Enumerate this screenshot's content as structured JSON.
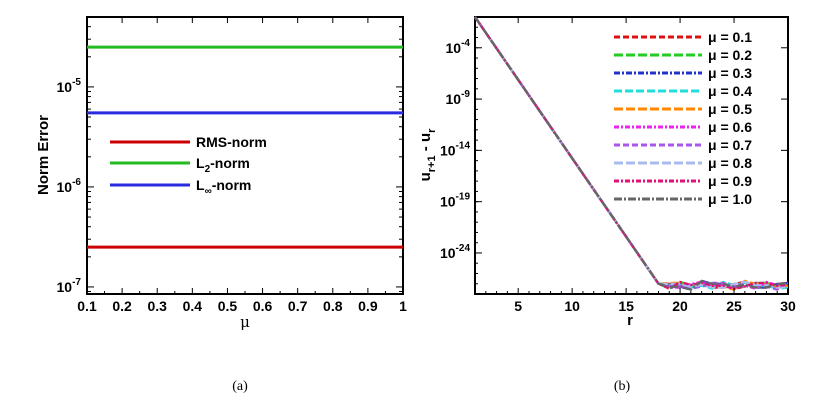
{
  "chart_data": [
    {
      "type": "line",
      "panel": "(a)",
      "xlabel": "μ",
      "ylabel": "Norm Error",
      "xlim": [
        0.1,
        1.0
      ],
      "ylim": [
        8.5e-08,
        5e-05
      ],
      "yscale": "log",
      "xticks": [
        "0.1",
        "0.2",
        "0.3",
        "0.4",
        "0.5",
        "0.6",
        "0.7",
        "0.8",
        "0.9",
        "1"
      ],
      "yticks": [
        {
          "value": 1e-07,
          "base": "10",
          "exp": "-7"
        },
        {
          "value": 1e-06,
          "base": "10",
          "exp": "-6"
        },
        {
          "value": 1e-05,
          "base": "10",
          "exp": "-5"
        }
      ],
      "legend_position": "center-left",
      "series": [
        {
          "name": "RMS-norm",
          "color": "#cc0000",
          "x": [
            0.1,
            1.0
          ],
          "y": [
            2.5e-07,
            2.5e-07
          ]
        },
        {
          "name": "L2-norm",
          "name_main": "L",
          "name_sub": "2",
          "name_tail": "-norm",
          "color": "#22bb22",
          "x": [
            0.1,
            1.0
          ],
          "y": [
            2.5e-05,
            2.5e-05
          ]
        },
        {
          "name": "L∞-norm",
          "name_main": "L",
          "name_sub": "∞",
          "name_tail": "-norm",
          "color": "#2a2ae0",
          "x": [
            0.1,
            1.0
          ],
          "y": [
            5.5e-06,
            5.5e-06
          ]
        }
      ]
    },
    {
      "type": "line",
      "panel": "(b)",
      "xlabel": "r",
      "ylabel": "u_{r+1} - u_r",
      "ylabel_parts": {
        "a": "u",
        "a_sub": "r+1",
        "mid": " - u",
        "b_sub": "r"
      },
      "xlim": [
        1,
        30
      ],
      "ylim": [
        1e-28,
        0.1
      ],
      "yscale": "log",
      "xticks": [
        "5",
        "10",
        "15",
        "20",
        "25",
        "30"
      ],
      "xtick_values": [
        5,
        10,
        15,
        20,
        25,
        30
      ],
      "yticks": [
        {
          "value": 0.0001,
          "base": "10",
          "exp": "-4"
        },
        {
          "value": 1e-09,
          "base": "10",
          "exp": "-9"
        },
        {
          "value": 1e-14,
          "base": "10",
          "exp": "-14"
        },
        {
          "value": 1e-19,
          "base": "10",
          "exp": "-19"
        },
        {
          "value": 1e-24,
          "base": "10",
          "exp": "-24"
        }
      ],
      "legend_position": "top-right",
      "series": [
        {
          "name": "μ = 0.1",
          "color": "#dd1111",
          "dash": "6,3"
        },
        {
          "name": "μ = 0.2",
          "color": "#22cc22",
          "dash": "9,3"
        },
        {
          "name": "μ = 0.3",
          "color": "#2233cc",
          "dash": "6,2,2,2"
        },
        {
          "name": "μ = 0.4",
          "color": "#22dddd",
          "dash": "8,3"
        },
        {
          "name": "μ = 0.5",
          "color": "#ff8800",
          "dash": "9,3"
        },
        {
          "name": "μ = 0.6",
          "color": "#ee22ee",
          "dash": "5,2,2,2"
        },
        {
          "name": "μ = 0.7",
          "color": "#aa55ee",
          "dash": "6,3"
        },
        {
          "name": "μ = 0.8",
          "color": "#aabbee",
          "dash": "9,3"
        },
        {
          "name": "μ = 0.9",
          "color": "#dd1177",
          "dash": "5,2,2,2"
        },
        {
          "name": "μ = 1.0",
          "color": "#666666",
          "dash": "8,2,2,2"
        }
      ],
      "curve_shape": {
        "x": [
          1,
          18,
          19,
          20,
          21,
          22,
          23,
          24,
          25,
          26,
          27,
          28,
          29,
          30
        ],
        "y_exp": [
          -1,
          -27.0,
          -27.2,
          -27.1,
          -27.3,
          -27.0,
          -27.2,
          -27.1,
          -27.3,
          -27.0,
          -27.2,
          -27.1,
          -27.3,
          -27.1
        ]
      }
    }
  ],
  "captions": {
    "a": "(a)",
    "b": "(b)"
  }
}
